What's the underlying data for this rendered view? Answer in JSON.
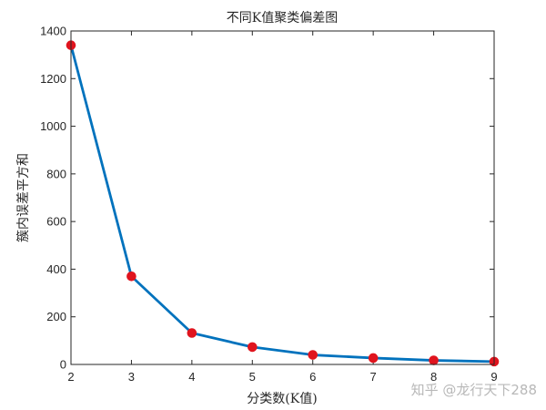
{
  "chart_data": {
    "type": "line",
    "title": "不同K值聚类偏差图",
    "xlabel": "分类数(K值)",
    "ylabel": "簇内误差平方和",
    "x": [
      2,
      3,
      4,
      5,
      6,
      7,
      8,
      9
    ],
    "series": [
      {
        "values": [
          1340,
          370,
          132,
          73,
          40,
          27,
          17,
          12
        ]
      }
    ],
    "xlim": [
      2,
      9
    ],
    "ylim": [
      0,
      1400
    ],
    "xticks": [
      "2",
      "3",
      "4",
      "5",
      "6",
      "7",
      "8",
      "9"
    ],
    "yticks": [
      "0",
      "200",
      "400",
      "600",
      "800",
      "1000",
      "1200",
      "1400"
    ],
    "grid": false,
    "line_color": "#0072BD",
    "marker_color": "#E0141E"
  },
  "watermark": "知乎 @龙行天下288"
}
